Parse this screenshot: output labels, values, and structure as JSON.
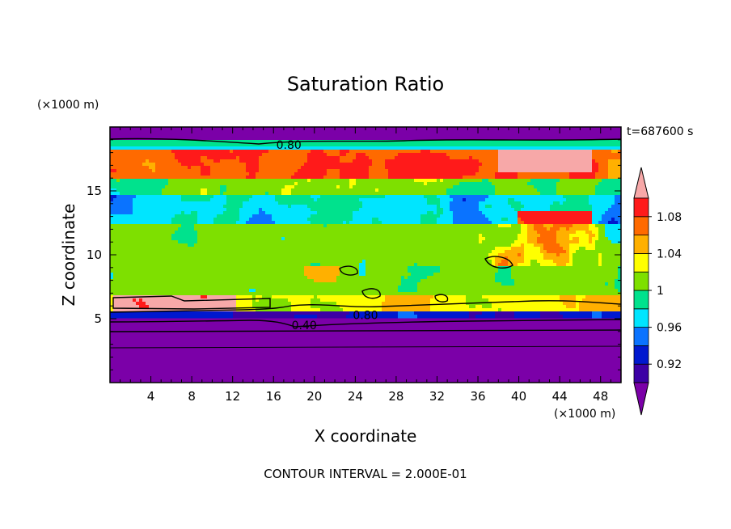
{
  "chart_data": {
    "type": "heatmap",
    "title": "Saturation Ratio",
    "xlabel": "X coordinate",
    "ylabel": "Z coordinate",
    "x_unit": "(×1000 m)",
    "y_unit": "(×1000 m)",
    "time_label": "t=687600 s",
    "footer": "CONTOUR INTERVAL = 2.000E-01",
    "xlim": [
      0,
      50
    ],
    "ylim": [
      0,
      20
    ],
    "x_ticks": [
      4,
      8,
      12,
      16,
      20,
      24,
      28,
      32,
      36,
      40,
      44,
      48
    ],
    "y_ticks": [
      5,
      10,
      15
    ],
    "contour_labels": [
      {
        "text": "0.80",
        "x": 17.5,
        "z": 18.6
      },
      {
        "text": "0.80",
        "x": 25,
        "z": 5.3
      },
      {
        "text": "0.40",
        "x": 19,
        "z": 4.5
      }
    ],
    "colorbar": {
      "tick_labels": [
        "0.92",
        "0.96",
        "1",
        "1.04",
        "1.08"
      ],
      "bins": [
        {
          "color": "#7b00a8"
        },
        {
          "color": "#3c00a5"
        },
        {
          "color": "#0018cf"
        },
        {
          "color": "#0a73ff"
        },
        {
          "color": "#00e5ff"
        },
        {
          "color": "#00e28d"
        },
        {
          "color": "#7ee000"
        },
        {
          "color": "#ffff00"
        },
        {
          "color": "#ffb000"
        },
        {
          "color": "#ff6a00"
        },
        {
          "color": "#ff1a1a"
        },
        {
          "color": "#f7a8a8"
        }
      ]
    }
  }
}
